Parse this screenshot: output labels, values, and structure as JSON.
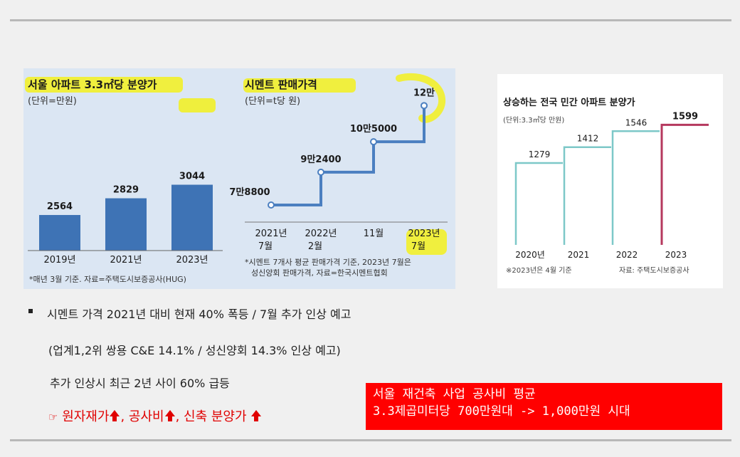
{
  "left_panel": {
    "apt_chart": {
      "title": "서울 아파트 3.3㎡당 분양가",
      "unit": "(단위=만원)",
      "categories": [
        "2019년",
        "2021년",
        "2023년"
      ],
      "value_labels": [
        "2564",
        "2829",
        "3044"
      ],
      "note": "*매년 3월 기준. 자료=주택도시보증공사(HUG)"
    },
    "cement_chart": {
      "title": "시멘트 판매가격",
      "unit": "(단위=t당 원)",
      "value_labels": [
        "7만8800",
        "9만2400",
        "10만5000",
        "12만"
      ],
      "x_labels": [
        {
          "l1": "2021년",
          "l2": "7월"
        },
        {
          "l1": "2022년",
          "l2": "2월"
        },
        {
          "l1": "11월",
          "l2": ""
        },
        {
          "l1": "2023년",
          "l2": "7월"
        }
      ],
      "note1": "*시멘트 7개사 평균 판매가격 기준, 2023년 7월은",
      "note2": "성신양회 판매가격, 자료=한국시멘트협회"
    }
  },
  "right_panel": {
    "title": "상승하는 전국 민간 아파트 분양가",
    "unit": "(단위:3.3㎡당 만원)",
    "categories": [
      "2020년",
      "2021",
      "2022",
      "2023"
    ],
    "value_labels": [
      "1279",
      "1412",
      "1546",
      "1599"
    ],
    "note": "※2023년은 4월 기준",
    "source": "자료: 주택도시보증공사"
  },
  "chart_data": [
    {
      "type": "bar",
      "title": "서울 아파트 3.3㎡당 분양가",
      "ylabel": "(단위=만원)",
      "categories": [
        "2019년",
        "2021년",
        "2023년"
      ],
      "values": [
        2564,
        2829,
        3044
      ]
    },
    {
      "type": "line",
      "title": "시멘트 판매가격",
      "ylabel": "(단위=t당 원)",
      "categories": [
        "2021년 7월",
        "2022년 2월",
        "11월",
        "2023년 7월"
      ],
      "values": [
        78800,
        92400,
        105000,
        120000
      ]
    },
    {
      "type": "bar",
      "title": "상승하는 전국 민간 아파트 분양가",
      "ylabel": "(단위:3.3㎡당 만원)",
      "categories": [
        "2020년",
        "2021",
        "2022",
        "2023"
      ],
      "values": [
        1279,
        1412,
        1546,
        1599
      ]
    }
  ],
  "bullets": {
    "line1": "시멘트 가격 2021년 대비 현재  40% 폭등 / 7월 추가 인상 예고",
    "line2": "(업계1,2위 쌍용 C&E 14.1% / 성신양회 14.3%  인상 예고)",
    "line3": "추가 인상시 최근 2년 사이 60% 급등"
  },
  "red_line": {
    "hand": "☞",
    "t1": "원자재가",
    "t2": ", 공사비",
    "t3": ", 신축 분양가 "
  },
  "red_box": {
    "line1": "서울 재건축 사업 공사비 평균",
    "line2": "3.3제곱미터당 700만원대 -> 1,000만원 시대"
  },
  "colors": {
    "bar_blue": "#3e73b5",
    "line_blue": "#4b7fc0",
    "teal": "#7dc8c8",
    "crimson": "#b5385e",
    "highlight": "#f2f02a",
    "alert_red": "#ff0000"
  }
}
